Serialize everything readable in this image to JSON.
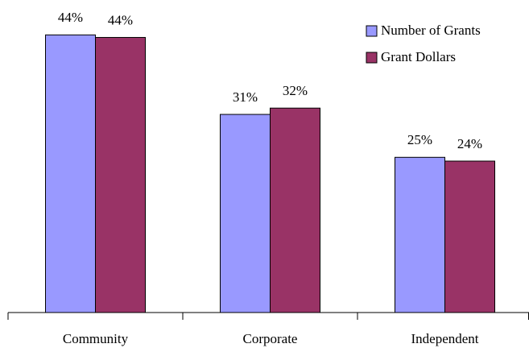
{
  "chart_data": {
    "type": "bar",
    "categories": [
      "Community",
      "Corporate",
      "Independent"
    ],
    "series": [
      {
        "name": "Number of Grants",
        "color": "#9999ff",
        "values": [
          44.0,
          31.4,
          24.6
        ],
        "value_labels": [
          "44%",
          "31%",
          "25%"
        ]
      },
      {
        "name": "Grant Dollars",
        "color": "#993366",
        "values": [
          43.6,
          32.4,
          24.0
        ],
        "value_labels": [
          "44%",
          "32%",
          "24%"
        ]
      }
    ],
    "ylim": [
      0,
      48
    ],
    "legend": "upper right"
  }
}
